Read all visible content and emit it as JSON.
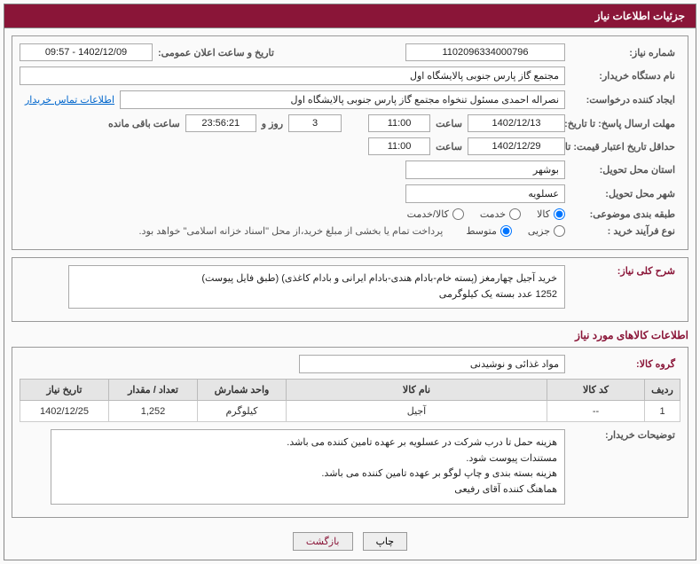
{
  "header": {
    "title": "جزئیات اطلاعات نیاز"
  },
  "accent_color": "#8a1538",
  "fields": {
    "need_no_label": "شماره نیاز:",
    "need_no": "1102096334000796",
    "announce_label": "تاریخ و ساعت اعلان عمومی:",
    "announce": "1402/12/09 - 09:57",
    "buyer_org_label": "نام دستگاه خریدار:",
    "buyer_org": "مجتمع گاز پارس جنوبی  پالایشگاه اول",
    "requester_label": "ایجاد کننده درخواست:",
    "requester": "نصراله احمدی مسئول تنخواه مجتمع گاز پارس جنوبی  پالایشگاه اول",
    "buyer_contact_link": "اطلاعات تماس خریدار",
    "resp_deadline_label": "مهلت ارسال پاسخ: تا تاریخ:",
    "resp_date": "1402/12/13",
    "time_label": "ساعت",
    "resp_time": "11:00",
    "days_remaining": "3",
    "days_word": "روز و",
    "countdown": "23:56:21",
    "remain_label": "ساعت باقی مانده",
    "price_valid_label": "حداقل تاریخ اعتبار قیمت: تا تاریخ:",
    "price_date": "1402/12/29",
    "price_time": "11:00",
    "province_label": "استان محل تحویل:",
    "province": "بوشهر",
    "city_label": "شهر محل تحویل:",
    "city": "عسلویه",
    "category_label": "طبقه بندی موضوعی:",
    "cat_goods": "کالا",
    "cat_service": "خدمت",
    "cat_goods_service": "کالا/خدمت",
    "purchase_type_label": "نوع فرآیند خرید :",
    "pt_partial": "جزیی",
    "pt_medium": "متوسط",
    "payment_note": "پرداخت تمام یا بخشی از مبلغ خرید،از محل \"اسناد خزانه اسلامی\" خواهد بود.",
    "desc_label": "شرح کلی نیاز:",
    "desc_line1": "خرید آجیل چهارمغز (پسته خام-بادام هندی-بادام ایرانی و بادام کاغذی) (طبق فایل پیوست)",
    "desc_line2": "1252 عدد بسته یک کیلوگرمی",
    "items_section_title": "اطلاعات کالاهای مورد نیاز",
    "goods_group_label": "گروه کالا:",
    "goods_group": "مواد غذائی و نوشیدنی",
    "buyer_notes_label": "توضیحات خریدار:",
    "buyer_notes_l1": "هزینه حمل تا درب شرکت در عسلویه بر عهده تامین کننده می باشد.",
    "buyer_notes_l2": "مستندات پیوست شود.",
    "buyer_notes_l3": "هزینه بسته بندی و چاپ لوگو بر عهده تامین کننده می باشد.",
    "buyer_notes_l4": "هماهنگ کننده آقای رفیعی"
  },
  "table": {
    "headers": [
      "ردیف",
      "کد کالا",
      "نام کالا",
      "واحد شمارش",
      "تعداد / مقدار",
      "تاریخ نیاز"
    ],
    "col_widths": [
      "40px",
      "110px",
      "auto",
      "100px",
      "100px",
      "100px"
    ],
    "rows": [
      [
        "1",
        "--",
        "آجیل",
        "کیلوگرم",
        "1,252",
        "1402/12/25"
      ]
    ]
  },
  "buttons": {
    "print": "چاپ",
    "back": "بازگشت"
  }
}
